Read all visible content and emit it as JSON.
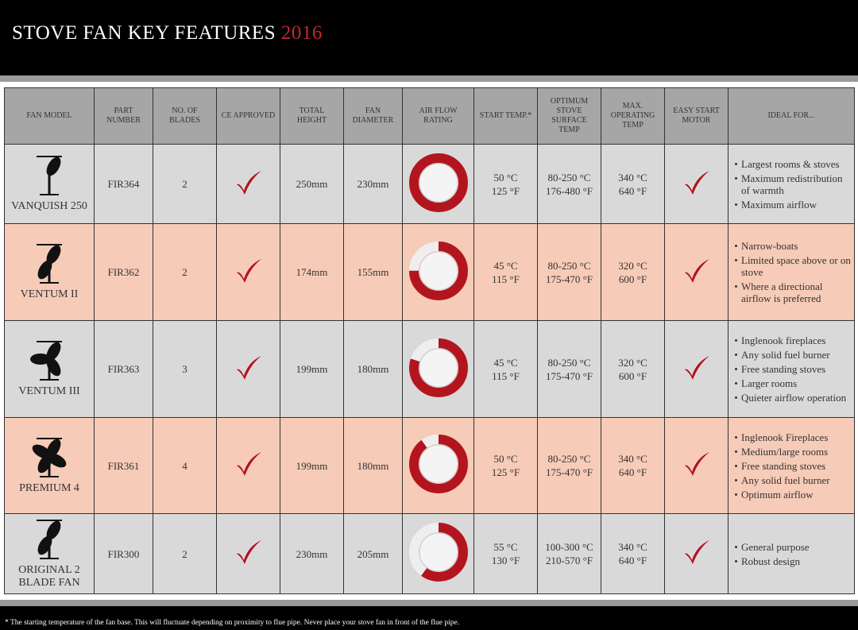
{
  "header": {
    "title": "STOVE FAN KEY FEATURES",
    "year": "2016"
  },
  "table": {
    "columns": [
      "FAN MODEL",
      "PART NUMBER",
      "NO. OF BLADES",
      "CE APPROVED",
      "TOTAL HEIGHT",
      "FAN DIAMETER",
      "AIR FLOW RATING",
      "START TEMP.*",
      "OPTIMUM STOVE SURFACE TEMP",
      "MAX. OPERATING TEMP",
      "EASY START MOTOR",
      "IDEAL FOR..."
    ],
    "rows": [
      {
        "model": "VANQUISH 250",
        "part": "FIR364",
        "blades": 2,
        "height": "250mm",
        "diameter": "230mm",
        "airflow": 100,
        "start": [
          "50 °C",
          "125 °F"
        ],
        "surface": [
          "80-250 °C",
          "176-480 °F"
        ],
        "max": [
          "340 °C",
          "640 °F"
        ],
        "ideal": [
          "Largest rooms & stoves",
          "Maximum redistribution of warmth",
          "Maximum airflow"
        ]
      },
      {
        "model": "VENTUM II",
        "part": "FIR362",
        "blades": 2,
        "height": "174mm",
        "diameter": "155mm",
        "airflow": 75,
        "start": [
          "45 °C",
          "115 °F"
        ],
        "surface": [
          "80-250 °C",
          "175-470 °F"
        ],
        "max": [
          "320 °C",
          "600 °F"
        ],
        "ideal": [
          "Narrow-boats",
          "Limited space above or on stove",
          "Where a directional airflow is preferred"
        ]
      },
      {
        "model": "VENTUM III",
        "part": "FIR363",
        "blades": 3,
        "height": "199mm",
        "diameter": "180mm",
        "airflow": 80,
        "start": [
          "45 °C",
          "115 °F"
        ],
        "surface": [
          "80-250 °C",
          "175-470 °F"
        ],
        "max": [
          "320 °C",
          "600 °F"
        ],
        "ideal": [
          "Inglenook fireplaces",
          "Any solid fuel burner",
          "Free standing stoves",
          "Larger rooms",
          "Quieter airflow operation"
        ]
      },
      {
        "model": "PREMIUM 4",
        "part": "FIR361",
        "blades": 4,
        "height": "199mm",
        "diameter": "180mm",
        "airflow": 90,
        "start": [
          "50 °C",
          "125 °F"
        ],
        "surface": [
          "80-250 °C",
          "175-470 °F"
        ],
        "max": [
          "340 °C",
          "640 °F"
        ],
        "ideal": [
          "Inglenook Fireplaces",
          "Medium/large rooms",
          "Free standing stoves",
          "Any solid fuel burner",
          "Optimum airflow"
        ]
      },
      {
        "model": "ORIGINAL 2 BLADE FAN",
        "part": "FIR300",
        "blades": 2,
        "height": "230mm",
        "diameter": "205mm",
        "airflow": 60,
        "start": [
          "55 °C",
          "130 °F"
        ],
        "surface": [
          "100-300 °C",
          "210-570 °F"
        ],
        "max": [
          "340 °C",
          "640 °F"
        ],
        "ideal": [
          "General purpose",
          "Robust design"
        ]
      }
    ]
  },
  "footnote": "* The starting temperature of the fan base. This will fluctuate depending on proximity to flue pipe. Never place your stove fan in front of the flue pipe."
}
